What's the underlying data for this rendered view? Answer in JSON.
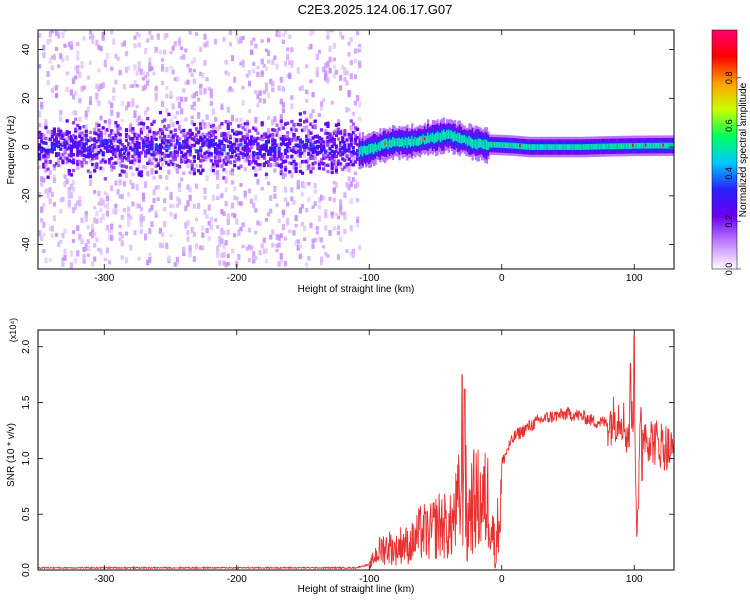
{
  "figure_title": "C2E3.2025.124.06.17.G07",
  "chart_data": [
    {
      "type": "heatmap",
      "title": "C2E3.2025.124.06.17.G07",
      "xlabel": "Height of straight line (km)",
      "ylabel": "Frequency (Hz)",
      "xlim": [
        -350,
        130
      ],
      "ylim": [
        -50,
        48
      ],
      "x_ticks": [
        -300,
        -200,
        -100,
        0,
        100
      ],
      "y_ticks": [
        -40,
        -20,
        0,
        20,
        40
      ],
      "colorbar": {
        "label": "Normalized spectral amplitude",
        "range": [
          0,
          1
        ],
        "ticks": [
          "0.0",
          "0.2",
          "0.4",
          "0.6",
          "0.8"
        ],
        "colormap": [
          "#ffffff",
          "#c080ff",
          "#6a00f0",
          "#2a20ff",
          "#00c8ff",
          "#00ff60",
          "#c8ff00",
          "#ffa000",
          "#ff0000",
          "#ff0070"
        ]
      },
      "signal": {
        "regime_change_x": -108,
        "noisy_region": {
          "x": [
            -350,
            -108
          ],
          "center_hz": 0,
          "spread_hz": 48,
          "core_halfwidth_hz": 8
        },
        "track": {
          "x": [
            -108,
            -100,
            -90,
            -80,
            -70,
            -60,
            -50,
            -40,
            -30,
            -20,
            -10,
            0,
            10,
            20,
            40,
            60,
            80,
            100,
            130
          ],
          "y": [
            -2,
            -1,
            1,
            2,
            2,
            3,
            4,
            5,
            3,
            1.5,
            1,
            0.8,
            0.5,
            0,
            0,
            0,
            0.3,
            0.5,
            0.6
          ]
        }
      }
    },
    {
      "type": "line",
      "xlabel": "Height of straight line (km)",
      "ylabel": "SNR (10 * v/v)",
      "exponent_label": "(x10⁴)",
      "xlim": [
        -350,
        130
      ],
      "ylim": [
        0,
        2.15
      ],
      "x_ticks": [
        -300,
        -200,
        -100,
        0,
        100
      ],
      "y_ticks": [
        "0.0",
        "0.5",
        "1.0",
        "1.5",
        "2.0"
      ],
      "series": [
        {
          "color": "#e83030",
          "x": [
            -350,
            -300,
            -250,
            -200,
            -150,
            -110,
            -100,
            -95,
            -90,
            -85,
            -80,
            -75,
            -70,
            -65,
            -60,
            -55,
            -50,
            -45,
            -40,
            -35,
            -30,
            -28,
            -26,
            -24,
            -20,
            -15,
            -10,
            -5,
            0,
            5,
            10,
            20,
            30,
            40,
            50,
            60,
            70,
            80,
            90,
            95,
            100,
            102,
            105,
            110,
            115,
            120,
            125,
            130
          ],
          "y": [
            0.02,
            0.02,
            0.02,
            0.02,
            0.02,
            0.02,
            0.05,
            0.2,
            0.28,
            0.3,
            0.25,
            0.35,
            0.3,
            0.4,
            0.5,
            0.45,
            0.55,
            0.6,
            0.5,
            0.7,
            1.0,
            1.25,
            0.6,
            0.8,
            0.9,
            0.85,
            0.9,
            0.3,
            0.95,
            1.1,
            1.2,
            1.28,
            1.35,
            1.38,
            1.4,
            1.38,
            1.33,
            1.32,
            1.4,
            1.2,
            1.5,
            0.4,
            1.3,
            1.2,
            1.15,
            1.13,
            1.1,
            1.03
          ],
          "spikes": [
            {
              "x": -30,
              "y": 1.75
            },
            {
              "x": -28,
              "y": 1.62
            },
            {
              "x": -26,
              "y": 0.08
            },
            {
              "x": -5,
              "y": 0.02
            },
            {
              "x": 100,
              "y": 2.1
            },
            {
              "x": 97,
              "y": 1.85
            },
            {
              "x": 103,
              "y": 0.55
            },
            {
              "x": 106,
              "y": 0.8
            }
          ]
        }
      ]
    }
  ]
}
